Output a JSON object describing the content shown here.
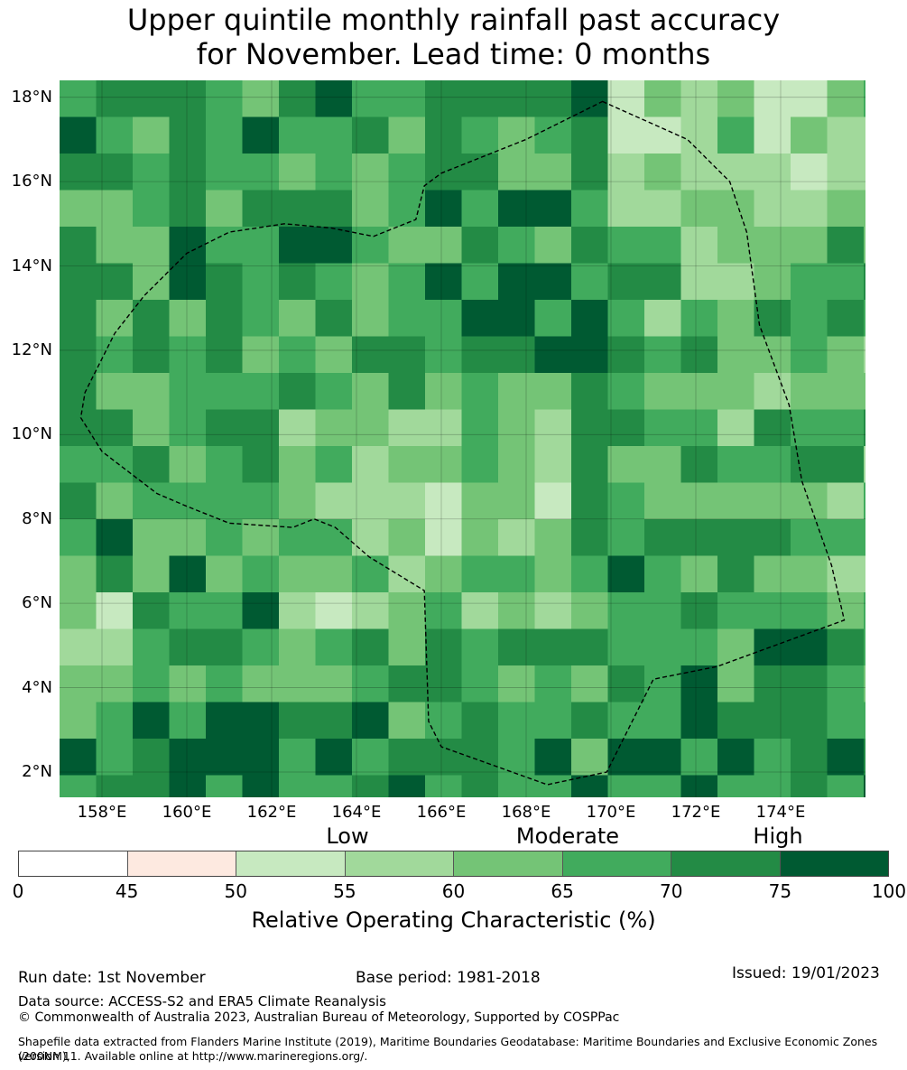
{
  "title": {
    "line1": "Upper quintile monthly rainfall past accuracy",
    "line2": "for November. Lead time: 0 months"
  },
  "map": {
    "lat_labels": [
      "18°N",
      "16°N",
      "14°N",
      "12°N",
      "10°N",
      "8°N",
      "6°N",
      "4°N",
      "2°N"
    ],
    "lat_values": [
      18,
      16,
      14,
      12,
      10,
      8,
      6,
      4,
      2
    ],
    "lon_labels": [
      "158°E",
      "160°E",
      "162°E",
      "164°E",
      "166°E",
      "168°E",
      "170°E",
      "172°E",
      "174°E"
    ],
    "lon_values": [
      158,
      160,
      162,
      164,
      166,
      168,
      170,
      172,
      174
    ],
    "extent": {
      "lon_min": 157.0,
      "lon_max": 176.0,
      "lat_min": 1.4,
      "lat_max": 18.4
    },
    "grid_degree": 0.55,
    "boundary_lonlat": [
      [
        169.8,
        17.9
      ],
      [
        171.8,
        17.0
      ],
      [
        172.8,
        16.0
      ],
      [
        173.2,
        14.8
      ],
      [
        173.5,
        12.6
      ],
      [
        174.2,
        10.7
      ],
      [
        174.5,
        8.9
      ],
      [
        175.2,
        6.9
      ],
      [
        175.5,
        5.6
      ],
      [
        172.5,
        4.5
      ],
      [
        171.0,
        4.2
      ],
      [
        169.9,
        2.0
      ],
      [
        168.5,
        1.7
      ],
      [
        166.0,
        2.6
      ],
      [
        165.7,
        3.2
      ],
      [
        165.6,
        6.3
      ],
      [
        164.3,
        7.1
      ],
      [
        163.5,
        7.8
      ],
      [
        163.0,
        8.0
      ],
      [
        162.5,
        7.8
      ],
      [
        161.0,
        7.9
      ],
      [
        160.0,
        8.3
      ],
      [
        159.3,
        8.6
      ],
      [
        158.0,
        9.6
      ],
      [
        157.5,
        10.4
      ],
      [
        157.6,
        11.0
      ],
      [
        158.3,
        12.4
      ],
      [
        159.0,
        13.3
      ],
      [
        160.0,
        14.3
      ],
      [
        161.0,
        14.8
      ],
      [
        162.3,
        15.0
      ],
      [
        163.4,
        14.9
      ],
      [
        164.4,
        14.7
      ],
      [
        165.4,
        15.1
      ],
      [
        165.6,
        15.9
      ],
      [
        166.0,
        16.2
      ],
      [
        168.0,
        17.0
      ]
    ]
  },
  "colorbar": {
    "ticks": [
      "0",
      "45",
      "50",
      "55",
      "60",
      "65",
      "70",
      "75",
      "100"
    ],
    "colors": [
      "#ffffff",
      "#fde9e0",
      "#c7e9c0",
      "#a1d99b",
      "#74c476",
      "#41ab5d",
      "#238b45",
      "#005a32"
    ],
    "categories": {
      "low": "Low",
      "moderate": "Moderate",
      "high": "High"
    },
    "label": "Relative Operating Characteristic (%)"
  },
  "footer": {
    "run_date": "Run date: 1st November",
    "base_period": "Base period: 1981-2018",
    "issued": "Issued: 19/01/2023",
    "data_source": "Data source: ACCESS-S2 and ERA5 Climate Reanalysis",
    "copyright": "© Commonwealth of Australia 2023, Australian Bureau of Meteorology, Supported by COSPPac",
    "shapefile_line1": "Shapefile data extracted from Flanders Marine Institute (2019), Maritime Boundaries Geodatabase: Maritime Boundaries and Exclusive Economic Zones (200NM),",
    "shapefile_line2": "version 11. Available online at http://www.marineregions.org/."
  }
}
